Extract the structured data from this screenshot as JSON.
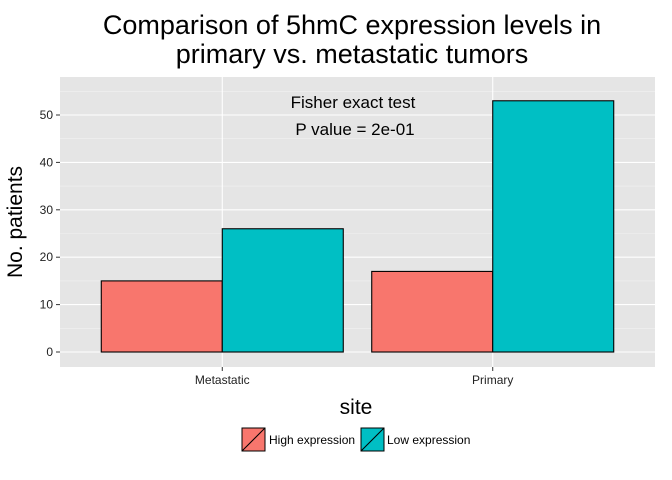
{
  "chart_data": {
    "type": "bar",
    "title_lines": [
      "Comparison of 5hmC expression levels in",
      "primary vs. metastatic tumors"
    ],
    "annotation_lines": [
      "Fisher exact test",
      "P value = 2e-01"
    ],
    "xlabel": "site",
    "ylabel": "No. patients",
    "categories": [
      "Metastatic",
      "Primary"
    ],
    "series": [
      {
        "name": "High expression",
        "values": [
          15,
          17
        ],
        "color": "#F8766D"
      },
      {
        "name": "Low expression",
        "values": [
          26,
          53
        ],
        "color": "#00BFC4"
      }
    ],
    "ylim": [
      0,
      57.2
    ],
    "yticks": [
      0,
      10,
      20,
      30,
      40,
      50
    ],
    "grid": true,
    "panel_background": "#E5E5E5",
    "legend_position": "bottom"
  }
}
